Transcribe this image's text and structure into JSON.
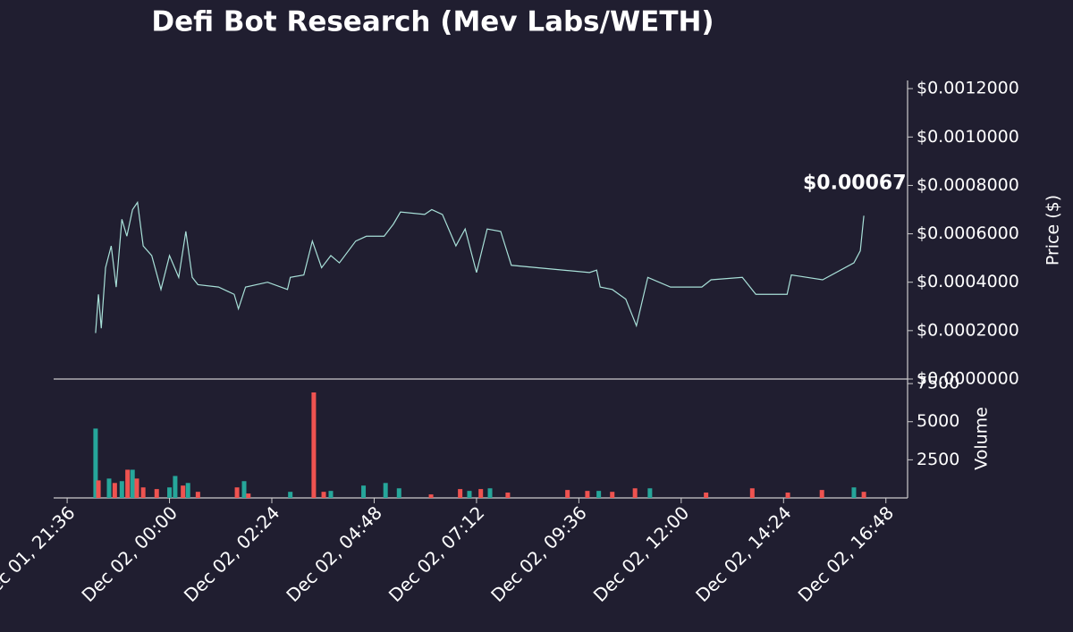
{
  "chart_data": [
    {
      "type": "line",
      "title": "Defi Bot Research (Mev Labs/WETH)",
      "ylabel": "Price ($)",
      "color": "#a8e0d8",
      "annotation": "$0.000675",
      "x": [
        "Dec 01, 22:16",
        "Dec 01, 22:20",
        "Dec 01, 22:24",
        "Dec 01, 22:30",
        "Dec 01, 22:38",
        "Dec 01, 22:45",
        "Dec 01, 22:53",
        "Dec 01, 23:00",
        "Dec 01, 23:08",
        "Dec 01, 23:15",
        "Dec 01, 23:23",
        "Dec 01, 23:35",
        "Dec 01, 23:48",
        "Dec 02, 00:00",
        "Dec 02, 00:13",
        "Dec 02, 00:23",
        "Dec 02, 00:32",
        "Dec 02, 00:40",
        "Dec 02, 01:09",
        "Dec 02, 01:31",
        "Dec 02, 01:37",
        "Dec 02, 01:47",
        "Dec 02, 02:18",
        "Dec 02, 02:46",
        "Dec 02, 02:50",
        "Dec 02, 03:09",
        "Dec 02, 03:21",
        "Dec 02, 03:34",
        "Dec 02, 03:47",
        "Dec 02, 03:59",
        "Dec 02, 04:22",
        "Dec 02, 04:37",
        "Dec 02, 05:02",
        "Dec 02, 05:15",
        "Dec 02, 05:25",
        "Dec 02, 05:59",
        "Dec 02, 06:09",
        "Dec 02, 06:24",
        "Dec 02, 06:43",
        "Dec 02, 06:56",
        "Dec 02, 07:12",
        "Dec 02, 07:27",
        "Dec 02, 07:46",
        "Dec 02, 08:01",
        "Dec 02, 09:51",
        "Dec 02, 10:01",
        "Dec 02, 10:06",
        "Dec 02, 10:23",
        "Dec 02, 10:42",
        "Dec 02, 10:57",
        "Dec 02, 11:13",
        "Dec 02, 11:45",
        "Dec 02, 12:29",
        "Dec 02, 12:42",
        "Dec 02, 13:26",
        "Dec 02, 13:45",
        "Dec 02, 14:29",
        "Dec 02, 14:35",
        "Dec 02, 15:19",
        "Dec 02, 16:03",
        "Dec 02, 16:12",
        "Dec 02, 16:17"
      ],
      "values": [
        0.00019,
        0.00035,
        0.00021,
        0.00046,
        0.00055,
        0.00038,
        0.00066,
        0.00059,
        0.0007,
        0.00073,
        0.00055,
        0.00051,
        0.00037,
        0.00051,
        0.00042,
        0.00061,
        0.00042,
        0.00039,
        0.00038,
        0.00035,
        0.00029,
        0.00038,
        0.0004,
        0.00037,
        0.00042,
        0.00043,
        0.00057,
        0.00046,
        0.00051,
        0.00048,
        0.00057,
        0.00059,
        0.00059,
        0.00064,
        0.00069,
        0.00068,
        0.0007,
        0.00068,
        0.00055,
        0.00062,
        0.00044,
        0.00062,
        0.00061,
        0.00047,
        0.00044,
        0.00045,
        0.00038,
        0.00037,
        0.00033,
        0.00022,
        0.00042,
        0.00038,
        0.00038,
        0.00041,
        0.00042,
        0.00035,
        0.00035,
        0.00043,
        0.00041,
        0.00048,
        0.00053,
        0.000675
      ],
      "xlim": [
        "Dec 01, 21:17",
        "Dec 02, 17:16"
      ],
      "ylim": [
        0,
        0.00123
      ],
      "yticks": [
        {
          "value": 0,
          "label": "$0.0000000"
        },
        {
          "value": 0.0002,
          "label": "$0.0002000"
        },
        {
          "value": 0.0004,
          "label": "$0.0004000"
        },
        {
          "value": 0.0006,
          "label": "$0.0006000"
        },
        {
          "value": 0.0008,
          "label": "$0.0008000"
        },
        {
          "value": 0.001,
          "label": "$0.0010000"
        },
        {
          "value": 0.0012,
          "label": "$0.0012000"
        }
      ]
    },
    {
      "type": "bar",
      "ylabel": "Volume",
      "x": [
        "Dec 01, 22:16",
        "Dec 01, 22:20",
        "Dec 01, 22:35",
        "Dec 01, 22:43",
        "Dec 01, 22:53",
        "Dec 01, 23:01",
        "Dec 01, 23:08",
        "Dec 01, 23:14",
        "Dec 01, 23:23",
        "Dec 01, 23:42",
        "Dec 02, 00:00",
        "Dec 02, 00:08",
        "Dec 02, 00:19",
        "Dec 02, 00:26",
        "Dec 02, 00:40",
        "Dec 02, 01:35",
        "Dec 02, 01:45",
        "Dec 02, 01:51",
        "Dec 02, 02:50",
        "Dec 02, 03:23",
        "Dec 02, 03:37",
        "Dec 02, 03:47",
        "Dec 02, 04:33",
        "Dec 02, 05:04",
        "Dec 02, 05:23",
        "Dec 02, 06:08",
        "Dec 02, 06:49",
        "Dec 02, 07:02",
        "Dec 02, 07:18",
        "Dec 02, 07:31",
        "Dec 02, 07:56",
        "Dec 02, 09:20",
        "Dec 02, 09:48",
        "Dec 02, 10:04",
        "Dec 02, 10:23",
        "Dec 02, 10:55",
        "Dec 02, 11:16",
        "Dec 02, 12:35",
        "Dec 02, 13:40",
        "Dec 02, 14:30",
        "Dec 02, 15:18",
        "Dec 02, 16:03",
        "Dec 02, 16:17"
      ],
      "values": [
        4550,
        1150,
        1270,
        980,
        1100,
        1850,
        1850,
        1270,
        690,
        580,
        690,
        1440,
        810,
        980,
        400,
        690,
        1100,
        290,
        400,
        6920,
        400,
        460,
        810,
        980,
        630,
        230,
        580,
        460,
        580,
        630,
        350,
        520,
        460,
        460,
        400,
        630,
        630,
        350,
        630,
        350,
        520,
        690,
        400
      ],
      "colors": [
        "#26a69a",
        "#ef5350",
        "#26a69a",
        "#ef5350",
        "#26a69a",
        "#ef5350",
        "#26a69a",
        "#ef5350",
        "#ef5350",
        "#ef5350",
        "#26a69a",
        "#26a69a",
        "#ef5350",
        "#26a69a",
        "#ef5350",
        "#ef5350",
        "#26a69a",
        "#ef5350",
        "#26a69a",
        "#ef5350",
        "#ef5350",
        "#26a69a",
        "#26a69a",
        "#26a69a",
        "#26a69a",
        "#ef5350",
        "#ef5350",
        "#26a69a",
        "#ef5350",
        "#26a69a",
        "#ef5350",
        "#ef5350",
        "#ef5350",
        "#26a69a",
        "#ef5350",
        "#ef5350",
        "#26a69a",
        "#ef5350",
        "#ef5350",
        "#ef5350",
        "#ef5350",
        "#26a69a",
        "#ef5350"
      ],
      "xlim": [
        "Dec 01, 21:17",
        "Dec 02, 17:16"
      ],
      "ylim": [
        0,
        7800
      ],
      "yticks": [
        2500,
        5000,
        7500
      ],
      "xticks": [
        "Dec 01, 21:36",
        "Dec 02, 00:00",
        "Dec 02, 02:24",
        "Dec 02, 04:48",
        "Dec 02, 07:12",
        "Dec 02, 09:36",
        "Dec 02, 12:00",
        "Dec 02, 14:24",
        "Dec 02, 16:48"
      ]
    }
  ]
}
